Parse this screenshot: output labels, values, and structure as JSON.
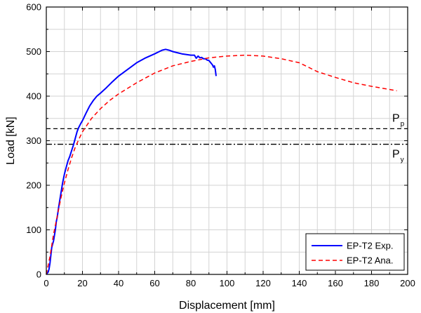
{
  "chart_data": {
    "type": "line",
    "xlabel": "Displacement [mm]",
    "ylabel": "Load [kN]",
    "xlim": [
      0,
      200
    ],
    "ylim": [
      0,
      600
    ],
    "xticks": [
      0,
      20,
      40,
      60,
      80,
      100,
      120,
      140,
      160,
      180,
      200
    ],
    "yticks": [
      0,
      100,
      200,
      300,
      400,
      500,
      600
    ],
    "grid": true,
    "legend_position": "bottom-right",
    "series": [
      {
        "name": "EP-T2 Exp.",
        "color": "#0000ff",
        "style": "solid",
        "x": [
          0,
          1,
          1.5,
          2,
          3,
          3.5,
          4,
          5,
          5.5,
          6,
          7,
          8,
          9,
          10,
          11,
          12,
          13,
          14,
          15,
          16,
          17,
          18,
          19,
          20,
          22,
          24,
          26,
          28,
          30,
          33,
          36,
          40,
          45,
          50,
          55,
          60,
          62,
          64,
          66,
          68,
          70,
          75,
          80,
          82,
          83,
          84,
          85,
          86,
          87,
          88,
          89,
          90,
          91,
          92,
          92.5,
          93,
          93.5,
          94
        ],
        "y": [
          0,
          5,
          12,
          25,
          60,
          68,
          75,
          100,
          118,
          128,
          155,
          180,
          205,
          225,
          240,
          255,
          265,
          278,
          290,
          305,
          320,
          330,
          338,
          345,
          362,
          378,
          390,
          400,
          407,
          418,
          430,
          445,
          460,
          475,
          486,
          495,
          499,
          503,
          505,
          503,
          500,
          495,
          492,
          492,
          485,
          490,
          486,
          487,
          484,
          484,
          481,
          480,
          475,
          470,
          465,
          468,
          460,
          445
        ]
      },
      {
        "name": "EP-T2 Ana.",
        "color": "#ff0000",
        "style": "dashed",
        "x": [
          0,
          2,
          4,
          6,
          8,
          10,
          12,
          14,
          16,
          18,
          20,
          25,
          30,
          35,
          40,
          50,
          60,
          70,
          80,
          90,
          100,
          110,
          120,
          130,
          140,
          150,
          160,
          170,
          180,
          190,
          194
        ],
        "y": [
          0,
          40,
          90,
          130,
          170,
          205,
          235,
          262,
          285,
          303,
          320,
          350,
          372,
          390,
          405,
          430,
          452,
          468,
          478,
          486,
          490,
          492,
          490,
          484,
          475,
          455,
          442,
          430,
          422,
          415,
          412
        ]
      }
    ],
    "reference_lines": [
      {
        "label": "P",
        "sub": "p",
        "y": 327,
        "style": "dashed",
        "color": "#000000"
      },
      {
        "label": "P",
        "sub": "y",
        "y": 292,
        "style": "dashdot",
        "color": "#000000"
      }
    ]
  }
}
